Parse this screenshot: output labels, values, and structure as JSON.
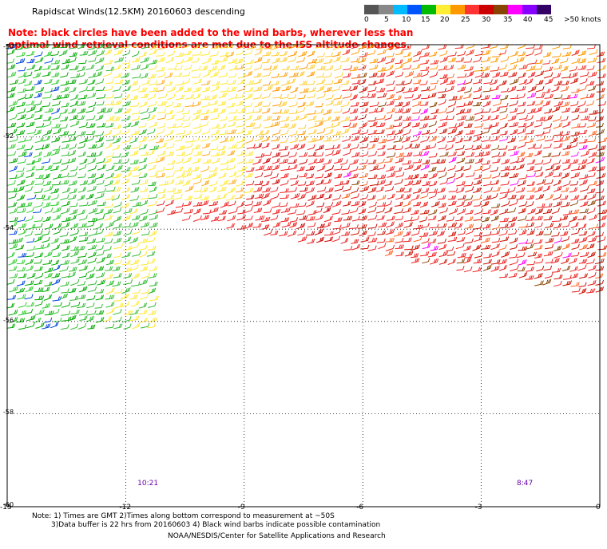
{
  "title": "Rapidscat Winds(12.5KM) 20160603 descending",
  "note": "Note: black circles have been added to the wind barbs, wherever less than optimal wind retrieval conditions are met due to the ISS altitude changes.",
  "legend": {
    "labels": [
      "0",
      "5",
      "10",
      "15",
      "20",
      "25",
      "30",
      "35",
      "40",
      "45",
      ">50 knots"
    ],
    "colors": [
      "#555555",
      "#888888",
      "#00bbff",
      "#0055ff",
      "#00bb00",
      "#ffee33",
      "#ff9900",
      "#ff3333",
      "#cc0000",
      "#884400",
      "#ff00ff",
      "#8800ff",
      "#330066"
    ]
  },
  "map": {
    "lat_labels": [
      "-50",
      "-52",
      "-54",
      "-56",
      "-58",
      "-60"
    ],
    "lon_labels": [
      "-15",
      "-12",
      "-9",
      "-6",
      "-3",
      "0"
    ],
    "lon_range": [
      -15,
      0
    ],
    "lat_range": [
      -60,
      -50
    ],
    "pass_times": [
      {
        "text": "10:21",
        "lon": -11.5
      },
      {
        "text": "8:47",
        "lon": -1.9
      }
    ]
  },
  "footnote_line1": "Note: 1) Times are GMT 2)Times along bottom correspond to measurement at ~50S",
  "footnote_line2": "3)Data buffer is 22 hrs from 20160603 4) Black wind barbs indicate possible contamination",
  "credit": "NOAA/NESDIS/Center for Satellite Applications and Research"
}
